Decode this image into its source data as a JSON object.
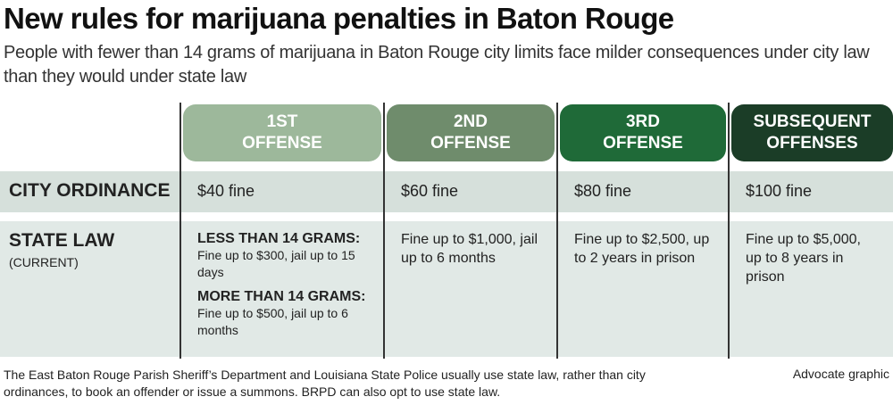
{
  "header": {
    "title": "New rules for marijuana penalties in Baton Rouge",
    "subtitle": "People with fewer than 14 grams of marijuana in Baton Rouge city limits face milder consequences under city law than they would under state law"
  },
  "table": {
    "columns": [
      {
        "lines": [
          "1ST",
          "OFFENSE"
        ],
        "color": "#9db89b"
      },
      {
        "lines": [
          "2ND",
          "OFFENSE"
        ],
        "color": "#6f8c6c"
      },
      {
        "lines": [
          "3RD",
          "OFFENSE"
        ],
        "color": "#1f6a38"
      },
      {
        "lines": [
          "SUBSEQUENT",
          "OFFENSES"
        ],
        "color": "#1b3d27"
      }
    ],
    "rows": [
      {
        "label": "CITY ORDINANCE",
        "cells": [
          "$40 fine",
          "$60 fine",
          "$80 fine",
          "$100 fine"
        ]
      },
      {
        "label": "STATE LAW",
        "sublabel": "(CURRENT)",
        "cells": [
          [
            {
              "heading": "LESS THAN 14 GRAMS:",
              "text": "Fine up to $300, jail up to 15 days"
            },
            {
              "heading": "MORE THAN 14 GRAMS:",
              "text": "Fine up to $500, jail up to 6 months"
            }
          ],
          "Fine up to $1,000, jail up to 6 months",
          "Fine up to $2,500, up to 2 years in prison",
          "Fine up to $5,000, up to 8 years in prison"
        ]
      }
    ]
  },
  "footer": {
    "note": "The East Baton Rouge Parish Sheriff’s Department and Louisiana State Police usually use state law, rather than city ordinances, to book an offender or issue a summons. BRPD can also opt to use state law.",
    "credit": "Advocate graphic"
  }
}
